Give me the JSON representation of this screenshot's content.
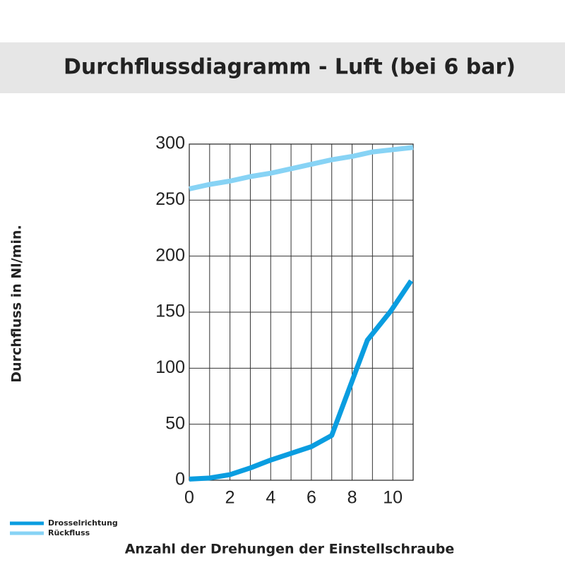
{
  "chart_data": {
    "type": "line",
    "title": "Durchflussdiagramm - Luft (bei 6 bar)",
    "x_label": "Anzahl der Drehungen der Einstellschraube",
    "y_label": "Durchfluss in Nl/min.",
    "xlim": [
      0,
      11
    ],
    "xticks": [
      0,
      2,
      4,
      6,
      8,
      10
    ],
    "xminorticks": [
      1,
      3,
      5,
      7,
      9,
      11
    ],
    "ylim": [
      0,
      300
    ],
    "yticks": [
      0,
      50,
      100,
      150,
      200,
      250,
      300
    ],
    "grid": true,
    "legend": "bottom-left",
    "series": [
      {
        "name": "Drosselrichtung",
        "color": "#0a9de0",
        "x": [
          0,
          1,
          2,
          3,
          4,
          5,
          6,
          7,
          8.75,
          9.9,
          10.9
        ],
        "values": [
          1,
          2,
          5,
          11,
          18,
          24,
          30,
          40,
          125,
          151,
          178
        ]
      },
      {
        "name": "Rückfluss",
        "color": "#87d3f5",
        "x": [
          0,
          1,
          2,
          3,
          4,
          5,
          6,
          7,
          8,
          9,
          10,
          11
        ],
        "values": [
          260,
          264,
          267,
          271,
          274,
          278,
          282,
          286,
          289,
          293,
          295,
          297
        ]
      }
    ]
  }
}
